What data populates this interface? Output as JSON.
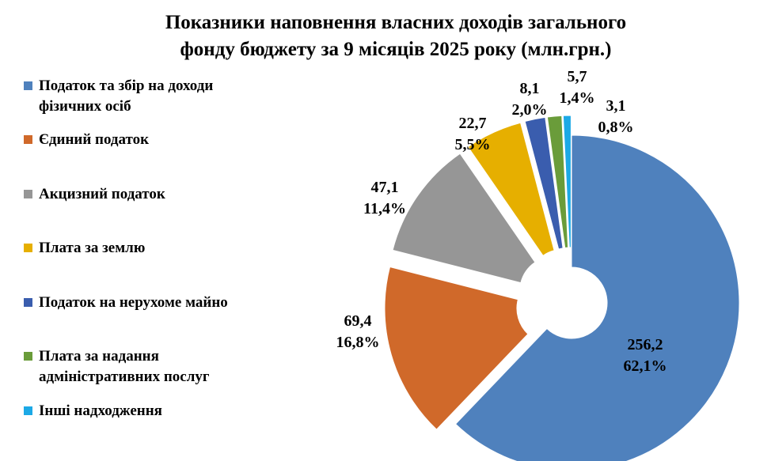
{
  "chart_data": {
    "type": "pie",
    "variant": "exploded-doughnut",
    "title_lines": [
      "Показники наповнення власних доходів загального",
      "фонду бюджету за 9 місяців 2025 року (млн.грн.)"
    ],
    "unit": "млн.грн.",
    "slices": [
      {
        "label_lines": [
          "Податок та збір на доходи",
          "фізичних осіб"
        ],
        "value": 256.2,
        "value_text": "256,2",
        "percent_text": "62,1%",
        "color": "#4F81BD"
      },
      {
        "label_lines": [
          "Єдиний податок"
        ],
        "value": 69.4,
        "value_text": "69,4",
        "percent_text": "16,8%",
        "color": "#D0692A"
      },
      {
        "label_lines": [
          "Акцизний податок"
        ],
        "value": 47.1,
        "value_text": "47,1",
        "percent_text": "11,4%",
        "color": "#969696"
      },
      {
        "label_lines": [
          "Плата за землю"
        ],
        "value": 22.7,
        "value_text": "22,7",
        "percent_text": "5,5%",
        "color": "#E6AF00"
      },
      {
        "label_lines": [
          "Податок на нерухоме майно"
        ],
        "value": 8.1,
        "value_text": "8,1",
        "percent_text": "2,0%",
        "color": "#3A5DAE"
      },
      {
        "label_lines": [
          "Плата за надання",
          "адміністративних послуг"
        ],
        "value": 5.7,
        "value_text": "5,7",
        "percent_text": "1,4%",
        "color": "#6A9C3A"
      },
      {
        "label_lines": [
          "Інші надходження"
        ],
        "value": 3.1,
        "value_text": "3,1",
        "percent_text": "0,8%",
        "color": "#1CA9E6"
      }
    ],
    "legend_position": "left"
  }
}
